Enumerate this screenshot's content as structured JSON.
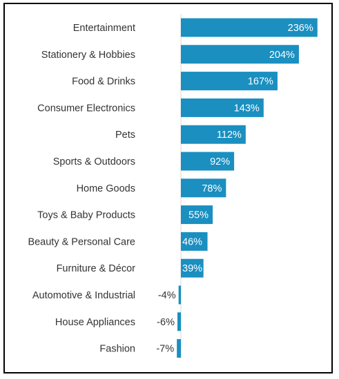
{
  "chart_data": {
    "type": "bar",
    "orientation": "horizontal",
    "categories": [
      "Entertainment",
      "Stationery & Hobbies",
      "Food & Drinks",
      "Consumer Electronics",
      "Pets",
      "Sports & Outdoors",
      "Home Goods",
      "Toys & Baby Products",
      "Beauty & Personal Care",
      "Furniture & Décor",
      "Automotive & Industrial",
      "House Appliances",
      "Fashion"
    ],
    "values": [
      236,
      204,
      167,
      143,
      112,
      92,
      78,
      55,
      46,
      39,
      -4,
      -6,
      -7
    ],
    "data_labels": [
      "236%",
      "204%",
      "167%",
      "143%",
      "112%",
      "92%",
      "78%",
      "55%",
      "46%",
      "39%",
      "-4%",
      "-6%",
      "-7%"
    ],
    "unit": "%",
    "bar_color": "#1A8FC0",
    "axis_line_color": "#D9D9D9",
    "xlim": [
      -7,
      240
    ],
    "grid": false,
    "legend": "none"
  }
}
